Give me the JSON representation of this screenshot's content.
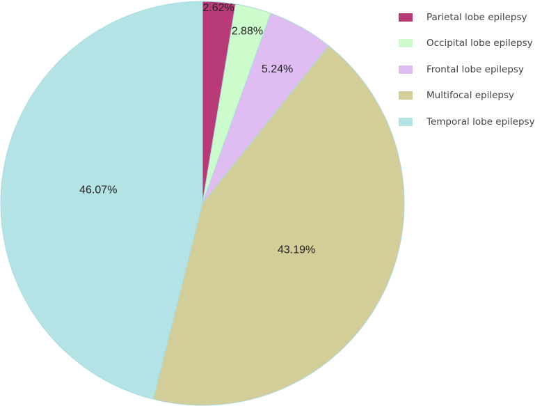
{
  "chart_data": {
    "type": "pie",
    "title": "",
    "legend_position": "top-right",
    "start_angle_deg": 0,
    "direction": "clockwise",
    "slices": [
      {
        "label": "Parietal lobe epilepsy",
        "value": 2.62,
        "value_label": "2.62%",
        "color": "#b83b77"
      },
      {
        "label": "Occipital lobe epilepsy",
        "value": 2.88,
        "value_label": "2.88%",
        "color": "#ccfccc"
      },
      {
        "label": "Frontal lobe epilepsy",
        "value": 5.24,
        "value_label": "5.24%",
        "color": "#dfbdf2"
      },
      {
        "label": "Multifocal epilepsy",
        "value": 43.19,
        "value_label": "43.19%",
        "color": "#d3cd98"
      },
      {
        "label": "Temporal lobe epilepsy",
        "value": 46.07,
        "value_label": "46.07%",
        "color": "#b4e3e6"
      }
    ],
    "slice_border_color": "#a9dbe0"
  }
}
